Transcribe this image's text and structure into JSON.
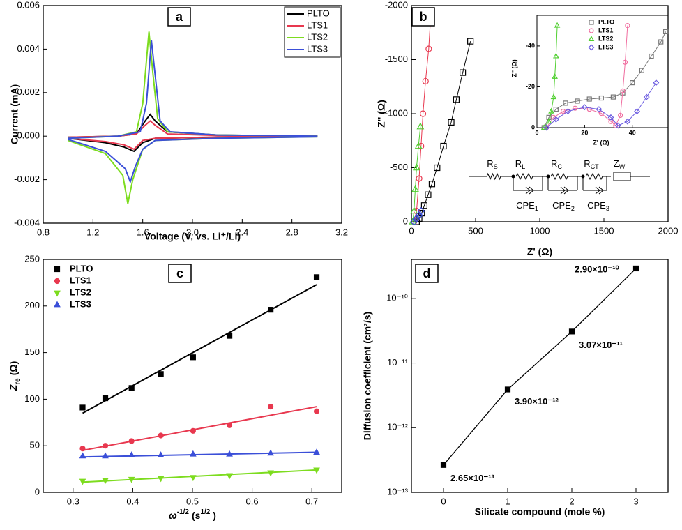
{
  "chart_data": [
    {
      "type": "line",
      "title": "a",
      "ylabel": "Current (mA)",
      "xlabel": "Voltage (V, vs. Li⁺/Li)",
      "xlim": [
        0.8,
        3.2
      ],
      "xticks": [
        0.8,
        1.2,
        1.6,
        {
          "value": 2.0,
          "label": "2.0"
        },
        2.4,
        2.8,
        3.2
      ],
      "ylim": [
        -0.004,
        0.006
      ],
      "yticks": [
        -0.004,
        -0.002,
        {
          "value": 0,
          "label": "0.000"
        },
        0.002,
        0.004,
        0.006
      ],
      "legend": "upper right",
      "series": [
        {
          "name": "PLTO",
          "color": "#000000",
          "x": [
            1.0,
            1.4,
            1.55,
            1.62,
            1.66,
            1.7,
            1.8,
            2.2,
            3.0,
            3.0,
            2.2,
            1.7,
            1.6,
            1.53,
            1.45,
            1.3,
            1.0
          ],
          "values": [
            -5e-05,
            0.0,
            0.0001,
            0.0007,
            0.001,
            0.0007,
            0.0002,
            5e-05,
            0.0,
            -2e-05,
            -5e-05,
            -0.0001,
            -0.0003,
            -0.0007,
            -0.0005,
            -0.0003,
            -0.0001
          ]
        },
        {
          "name": "LTS1",
          "color": "#e8384f",
          "x": [
            1.0,
            1.4,
            1.55,
            1.62,
            1.66,
            1.7,
            1.8,
            2.2,
            3.0,
            3.0,
            2.2,
            1.7,
            1.6,
            1.53,
            1.45,
            1.3,
            1.0
          ],
          "values": [
            -5e-05,
            0.0,
            0.0001,
            0.0005,
            0.0007,
            0.0005,
            0.0001,
            3e-05,
            0.0,
            -2e-05,
            -4e-05,
            -0.0001,
            -0.0002,
            -0.0006,
            -0.0004,
            -0.00025,
            -0.0001
          ]
        },
        {
          "name": "LTS2",
          "color": "#7ddc1f",
          "x": [
            1.0,
            1.4,
            1.55,
            1.6,
            1.65,
            1.68,
            1.72,
            1.8,
            2.2,
            3.0,
            3.0,
            2.2,
            1.7,
            1.6,
            1.52,
            1.48,
            1.44,
            1.3,
            1.0
          ],
          "values": [
            -0.0001,
            0.0,
            0.0002,
            0.0015,
            0.0048,
            0.003,
            0.0008,
            0.0002,
            5e-05,
            0.0,
            -3e-05,
            -0.0001,
            -0.0002,
            -0.0006,
            -0.002,
            -0.0031,
            -0.0018,
            -0.0008,
            -0.0002
          ]
        },
        {
          "name": "LTS3",
          "color": "#3b4fd8",
          "x": [
            1.0,
            1.4,
            1.58,
            1.63,
            1.67,
            1.7,
            1.74,
            1.82,
            2.2,
            3.0,
            3.0,
            2.2,
            1.7,
            1.6,
            1.54,
            1.5,
            1.46,
            1.3,
            1.0
          ],
          "values": [
            -0.0001,
            0.0,
            0.0002,
            0.0015,
            0.0044,
            0.0028,
            0.0007,
            0.0002,
            5e-05,
            0.0,
            -3e-05,
            -0.0001,
            -0.0002,
            -0.0006,
            -0.0014,
            -0.0021,
            -0.0015,
            -0.0007,
            -0.00015
          ]
        }
      ]
    },
    {
      "type": "scatter",
      "title": "b",
      "xlabel": "Z' (Ω)",
      "ylabel": "Z'' (Ω)",
      "xlim": [
        0,
        2000
      ],
      "xticks": [
        0,
        500,
        1000,
        1500,
        2000
      ],
      "ylim": [
        0,
        -2000
      ],
      "yticks": [
        0,
        -500,
        -1000,
        -1500,
        -2000
      ],
      "series": [
        {
          "name": "PLTO",
          "color": "#000000",
          "marker": "square",
          "x": [
            40,
            60,
            80,
            100,
            130,
            160,
            200,
            250,
            310,
            350,
            400,
            460
          ],
          "values": [
            0,
            -30,
            -80,
            -150,
            -250,
            -350,
            -500,
            -700,
            -920,
            -1130,
            -1380,
            -1670
          ]
        },
        {
          "name": "LTS1",
          "color": "#e8384f",
          "marker": "circle",
          "x": [
            20,
            40,
            60,
            75,
            90,
            110,
            135,
            150
          ],
          "values": [
            0,
            -100,
            -400,
            -700,
            -1000,
            -1300,
            -1600,
            -1900
          ]
        },
        {
          "name": "LTS2",
          "color": "#4fcf2f",
          "marker": "triangle-up",
          "x": [
            10,
            20,
            30,
            40,
            55,
            70
          ],
          "values": [
            0,
            -100,
            -300,
            -500,
            -700,
            -880
          ]
        },
        {
          "name": "LTS3",
          "color": "#3b4fd8",
          "marker": "diamond",
          "x": [
            20,
            40,
            60,
            75
          ],
          "values": [
            0,
            -30,
            -60,
            -100
          ]
        }
      ],
      "circuit": [
        {
          "main": "R",
          "sub": "S"
        },
        {
          "main": "R",
          "sub": "L"
        },
        {
          "main": "R",
          "sub": "C"
        },
        {
          "main": "R",
          "sub": "CT"
        },
        {
          "main": "Z",
          "sub": "W"
        },
        {
          "main": "CPE",
          "sub": "1"
        },
        {
          "main": "CPE",
          "sub": "2"
        },
        {
          "main": "CPE",
          "sub": "3"
        }
      ]
    },
    {
      "type": "scatter",
      "xlabel": "Z' (Ω)",
      "ylabel": "Z'' (Ω)",
      "xlim": [
        0,
        55
      ],
      "xticks": [
        0,
        20,
        40
      ],
      "ylim": [
        0,
        -55
      ],
      "yticks": [
        0,
        -20,
        -40
      ],
      "legend": "upper left",
      "series": [
        {
          "name": "PLTO",
          "color": "#777777",
          "marker": "square",
          "x": [
            3,
            5,
            8,
            12,
            17,
            22,
            27,
            32,
            36,
            40,
            44,
            48,
            52,
            54
          ],
          "values": [
            0,
            -5,
            -9,
            -12,
            -13,
            -14,
            -14.5,
            -15,
            -17,
            -22,
            -28,
            -35,
            -42,
            -47
          ]
        },
        {
          "name": "LTS1",
          "color": "#f06ea0",
          "marker": "circle",
          "x": [
            4,
            7,
            11,
            16,
            22,
            27,
            31,
            33,
            35,
            36,
            37,
            38
          ],
          "values": [
            0,
            -5,
            -8,
            -9.5,
            -9,
            -7,
            -3,
            -1,
            -6,
            -18,
            -32,
            -50
          ]
        },
        {
          "name": "LTS2",
          "color": "#4fcf2f",
          "marker": "triangle-up",
          "x": [
            3,
            5,
            6,
            7,
            7.5,
            8,
            8.5
          ],
          "values": [
            0,
            -3,
            -8,
            -15,
            -25,
            -35,
            -50
          ]
        },
        {
          "name": "LTS3",
          "color": "#6a5ae0",
          "marker": "diamond",
          "x": [
            4,
            8,
            13,
            20,
            26,
            31,
            34,
            38,
            42,
            46,
            50
          ],
          "values": [
            0,
            -4,
            -8,
            -10,
            -9,
            -5,
            -1,
            -3,
            -8,
            -15,
            -22
          ]
        }
      ]
    },
    {
      "type": "scatter",
      "title": "c",
      "xlabel": [
        {
          "text": "ω"
        },
        {
          "text": "-1/2",
          "sup": true
        },
        {
          "text": "(s"
        },
        {
          "text": "1/2",
          "sup": true
        },
        {
          "text": ")"
        }
      ],
      "ylabel": [
        {
          "text": "Z"
        },
        {
          "text": "re",
          "sub": true
        },
        {
          "text": "(Ω)"
        }
      ],
      "xlim": [
        0.25,
        0.75
      ],
      "xticks": [
        0.3,
        0.4,
        0.5,
        0.6,
        0.7
      ],
      "ylim": [
        0,
        250
      ],
      "yticks": [
        0,
        50,
        100,
        150,
        200,
        250
      ],
      "legend": "upper left",
      "x": [
        0.316,
        0.354,
        0.398,
        0.447,
        0.501,
        0.562,
        0.631,
        0.708
      ],
      "fit_x": [
        0.316,
        0.708
      ],
      "series": [
        {
          "name": "PLTO",
          "color": "#000000",
          "marker": "square",
          "values": [
            91,
            101,
            112,
            127,
            145,
            168,
            196,
            231
          ],
          "fit": [
            85,
            223
          ]
        },
        {
          "name": "LTS1",
          "color": "#e8384f",
          "marker": "circle",
          "values": [
            47,
            50,
            55,
            61,
            66,
            72,
            92,
            87
          ],
          "fit": [
            45,
            92
          ]
        },
        {
          "name": "LTS2",
          "color": "#7ddc1f",
          "marker": "triangle-down",
          "values": [
            12,
            13,
            14,
            15,
            16,
            18,
            21,
            24
          ],
          "fit": [
            11,
            24
          ]
        },
        {
          "name": "LTS3",
          "color": "#3b4fd8",
          "marker": "triangle-up",
          "values": [
            39,
            39,
            40,
            40,
            41,
            41,
            42,
            43
          ],
          "fit": [
            38,
            43
          ]
        }
      ]
    },
    {
      "type": "line",
      "title": "d",
      "xlabel": "Silicate compound (mole %)",
      "ylabel": "Diffusion coefficient (cm²/s)",
      "log_y": true,
      "xlim": [
        -0.5,
        3.5
      ],
      "xticks": [
        0,
        1,
        2,
        3
      ],
      "ylim": [
        1e-13,
        4e-10
      ],
      "yticks": [
        {
          "value": 1e-13,
          "label": "10⁻¹³"
        },
        {
          "value": 1e-12,
          "label": "10⁻¹²"
        },
        {
          "value": 1e-11,
          "label": "10⁻¹¹"
        },
        {
          "value": 1e-10,
          "label": "10⁻¹⁰"
        }
      ],
      "color": "#000000",
      "x": [
        0,
        1,
        2,
        3
      ],
      "values": [
        2.65e-13,
        3.9e-12,
        3.07e-11,
        2.9e-10
      ],
      "value_labels": [
        "2.65×10⁻¹³",
        "3.90×10⁻¹²",
        "3.07×10⁻¹¹",
        "2.90×10⁻¹⁰"
      ]
    }
  ]
}
